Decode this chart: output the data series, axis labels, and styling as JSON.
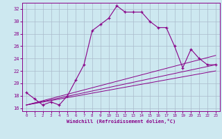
{
  "xlabel": "Windchill (Refroidissement éolien,°C)",
  "background_color": "#cde8f0",
  "grid_color": "#aabbcc",
  "line_color": "#880088",
  "xlim": [
    -0.5,
    23.5
  ],
  "ylim": [
    15.5,
    33.0
  ],
  "yticks": [
    16,
    18,
    20,
    22,
    24,
    26,
    28,
    30,
    32
  ],
  "xticks": [
    0,
    1,
    2,
    3,
    4,
    5,
    6,
    7,
    8,
    9,
    10,
    11,
    12,
    13,
    14,
    15,
    16,
    17,
    18,
    19,
    20,
    21,
    22,
    23
  ],
  "curve1_x": [
    0,
    1,
    2,
    3,
    4,
    5,
    6,
    7,
    8,
    9,
    10,
    11,
    12,
    13,
    14,
    15,
    16,
    17,
    18,
    19,
    20,
    21,
    22,
    23
  ],
  "curve1_y": [
    18.5,
    17.5,
    16.5,
    17.0,
    16.5,
    18.0,
    20.5,
    23.0,
    28.5,
    29.5,
    30.5,
    32.5,
    31.5,
    31.5,
    31.5,
    30.0,
    29.0,
    29.0,
    26.0,
    22.5,
    25.5,
    24.0,
    23.0,
    23.0
  ],
  "line1_x": [
    0,
    23
  ],
  "line1_y": [
    16.5,
    24.5
  ],
  "line2_x": [
    0,
    23
  ],
  "line2_y": [
    16.5,
    23.0
  ],
  "line3_x": [
    0,
    23
  ],
  "line3_y": [
    16.5,
    22.0
  ]
}
